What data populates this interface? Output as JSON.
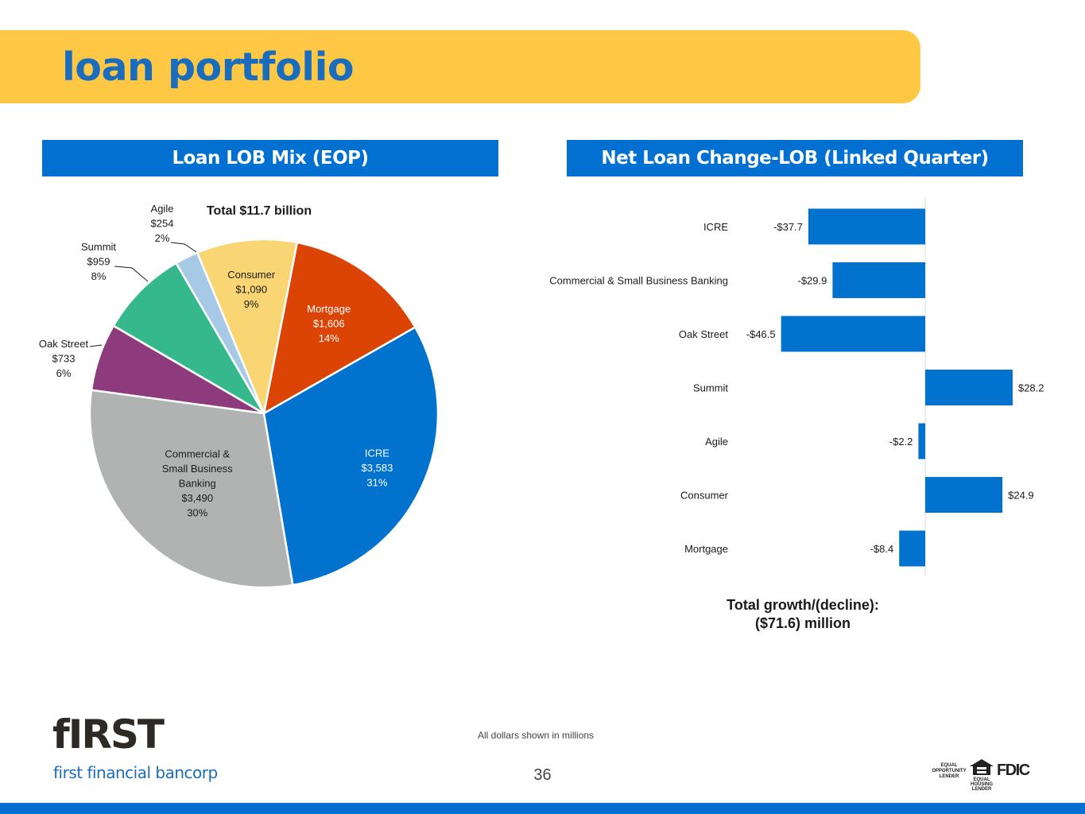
{
  "header": {
    "title": "loan portfolio"
  },
  "left_panel": {
    "title": "Loan LOB Mix (EOP)"
  },
  "right_panel": {
    "title": "Net Loan Change-LOB (Linked Quarter)"
  },
  "chart_data": [
    {
      "type": "pie",
      "title": "Total $11.7 billion",
      "start_angle_deg": 11,
      "slices": [
        {
          "label": "Mortgage",
          "value": 1606,
          "value_label": "$1,606",
          "percent_label": "14%",
          "color": "#dc4405"
        },
        {
          "label": "ICRE",
          "value": 3583,
          "value_label": "$3,583",
          "percent_label": "31%",
          "color": "#0173cf"
        },
        {
          "label": "Commercial & Small Business Banking",
          "label_lines": [
            "Commercial &",
            "Small Business",
            "Banking"
          ],
          "value": 3490,
          "value_label": "$3,490",
          "percent_label": "30%",
          "color": "#b1b3b2"
        },
        {
          "label": "Oak Street",
          "value": 733,
          "value_label": "$733",
          "percent_label": "6%",
          "color": "#8e3b7d"
        },
        {
          "label": "Summit",
          "value": 959,
          "value_label": "$959",
          "percent_label": "8%",
          "color": "#35b88c"
        },
        {
          "label": "Agile",
          "value": 254,
          "value_label": "$254",
          "percent_label": "2%",
          "color": "#a6c9e6"
        },
        {
          "label": "Consumer",
          "value": 1090,
          "value_label": "$1,090",
          "percent_label": "9%",
          "color": "#f9d673"
        }
      ]
    },
    {
      "type": "bar",
      "orientation": "horizontal",
      "title": "Net Loan Change-LOB (Linked Quarter)",
      "categories": [
        "ICRE",
        "Commercial & Small Business Banking",
        "Oak Street",
        "Summit",
        "Agile",
        "Consumer",
        "Mortgage"
      ],
      "values": [
        -37.7,
        -29.9,
        -46.5,
        28.2,
        -2.2,
        24.9,
        -8.4
      ],
      "value_labels": [
        "-$37.7",
        "-$29.9",
        "-$46.5",
        "$28.2",
        "-$2.2",
        "$24.9",
        "-$8.4"
      ],
      "xlim": [
        -50,
        40
      ],
      "bar_color": "#0173cf",
      "units": "millions"
    }
  ],
  "total_growth": {
    "line1": "Total growth/(decline):",
    "line2": "($71.6) million"
  },
  "footer": {
    "note": "All dollars shown in millions",
    "page_number": "36",
    "logo_word": "fIRST",
    "logo_subtitle": "first financial bancorp",
    "badges": {
      "eol": "EQUAL OPPORTUNITY LENDER",
      "ehl": "EQUAL HOUSING LENDER",
      "fdic": "FDIC"
    }
  }
}
